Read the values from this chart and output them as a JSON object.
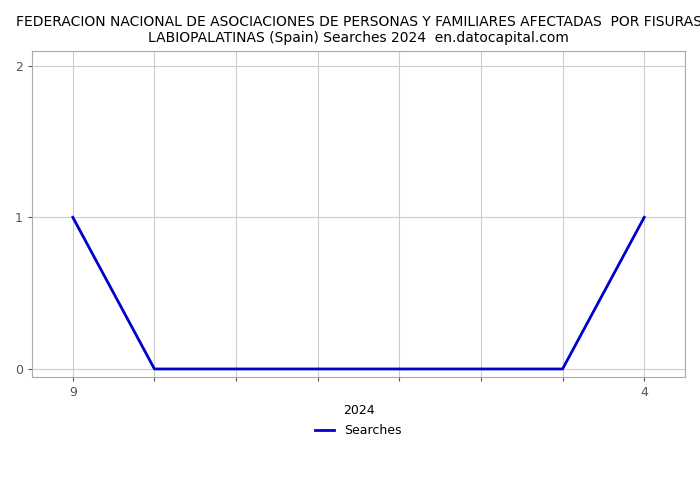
{
  "title_line1": "FEDERACION NACIONAL DE ASOCIACIONES DE PERSONAS Y FAMILIARES AFECTADAS  POR FISURAS",
  "title_line2": "LABIOPALATINAS (Spain) Searches 2024  en.datocapital.com",
  "xlabel": "2024",
  "ylabel": "",
  "legend_label": "Searches",
  "line_color": "#0000cc",
  "background_color": "#ffffff",
  "grid_color": "#cccccc",
  "x_data": [
    1,
    2,
    3,
    4,
    5,
    6,
    7,
    8
  ],
  "y_data": [
    1,
    0,
    0,
    0,
    0,
    0,
    0,
    1
  ],
  "x_tick_positions": [
    1,
    2,
    3,
    4,
    5,
    6,
    7,
    8
  ],
  "x_tick_labels": [
    "9",
    "",
    "",
    "",
    "",
    "",
    "",
    "4"
  ],
  "ylim": [
    -0.05,
    2.1
  ],
  "xlim_min": 0.5,
  "xlim_max": 8.5,
  "yticks": [
    0,
    1,
    2
  ],
  "title_fontsize": 10.0,
  "axis_fontsize": 9,
  "legend_fontsize": 9,
  "line_width": 2.0
}
